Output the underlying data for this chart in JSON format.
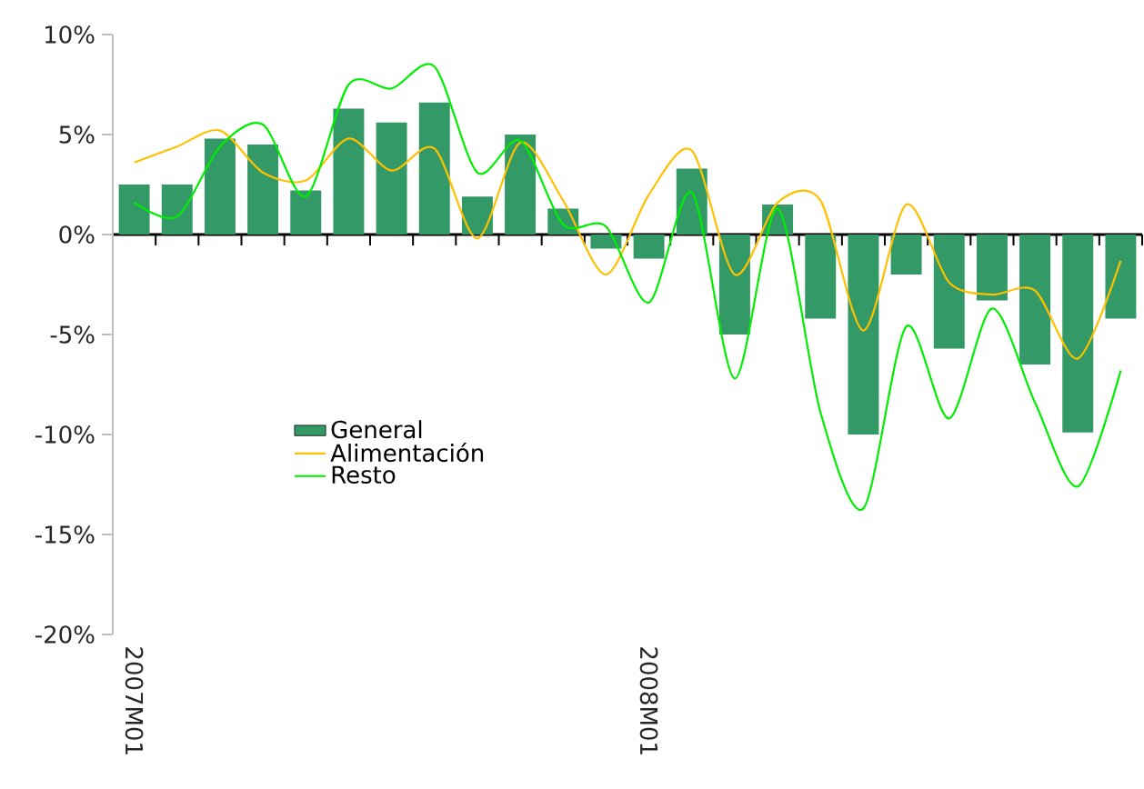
{
  "chart_data": {
    "type": "bar",
    "categories": [
      "2007M01",
      null,
      null,
      null,
      null,
      null,
      null,
      null,
      null,
      null,
      null,
      null,
      "2008M01",
      null,
      null,
      null,
      null,
      null,
      null,
      null,
      null,
      null,
      null,
      null
    ],
    "series": [
      {
        "name": "General",
        "color": "#339966",
        "values": [
          2.5,
          2.5,
          4.8,
          4.5,
          2.2,
          6.3,
          5.6,
          6.6,
          1.9,
          5.0,
          1.3,
          -0.7,
          -1.2,
          3.3,
          -5.0,
          1.5,
          -4.2,
          -10.0,
          -2.0,
          -5.7,
          -3.3,
          -6.5,
          -9.9,
          -4.2
        ]
      },
      {
        "name": "Alimentación",
        "type": "line",
        "color": "#ffc000",
        "values": [
          3.6,
          4.4,
          5.2,
          3.1,
          2.7,
          4.8,
          3.2,
          4.3,
          -0.2,
          4.6,
          1.7,
          -2.0,
          2.0,
          4.2,
          -2.0,
          1.6,
          1.7,
          -4.8,
          1.5,
          -2.4,
          -3.0,
          -2.8,
          -6.2,
          -1.3
        ]
      },
      {
        "name": "Resto",
        "type": "line",
        "color": "#00ee00",
        "values": [
          1.6,
          0.9,
          4.4,
          5.5,
          1.9,
          7.5,
          7.3,
          8.4,
          3.1,
          4.7,
          0.5,
          0.4,
          -3.4,
          2.1,
          -7.2,
          1.3,
          -8.9,
          -13.7,
          -4.6,
          -9.2,
          -3.7,
          -8.4,
          -12.6,
          -6.8
        ]
      }
    ],
    "ylim": [
      -20,
      10
    ],
    "yticks": [
      {
        "value": -20,
        "label": "-20%"
      },
      {
        "value": -15,
        "label": "-15%"
      },
      {
        "value": -10,
        "label": "-10%"
      },
      {
        "value": -5,
        "label": "-5%"
      },
      {
        "value": 0,
        "label": "0%"
      },
      {
        "value": 5,
        "label": "5%"
      },
      {
        "value": 10,
        "label": "10%"
      }
    ],
    "legend": "bottom left",
    "marker": "none",
    "line_style": "solid"
  }
}
